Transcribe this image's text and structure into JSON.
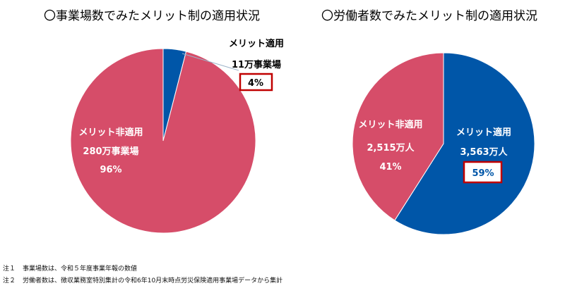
{
  "colors": {
    "applied": "#0056A8",
    "not_applied": "#D64D69",
    "highlight_box": "#C00000",
    "callout_line": "#9DB3C9"
  },
  "chart_data": [
    {
      "type": "pie",
      "title": "〇事業場数でみたメリット制の適用状況",
      "slices": [
        {
          "key": "applied",
          "value": 4,
          "label_lines": [
            "メリット適用",
            "11万事業場"
          ],
          "percent_label": "4%"
        },
        {
          "key": "not_applied",
          "value": 96,
          "label_lines": [
            "メリット非適用",
            "280万事業場"
          ],
          "percent_label": "96%"
        }
      ]
    },
    {
      "type": "pie",
      "title": "〇労働者数でみたメリット制の適用状況",
      "slices": [
        {
          "key": "applied",
          "value": 59,
          "label_lines": [
            "メリット適用",
            "3,563万人"
          ],
          "percent_label": "59%"
        },
        {
          "key": "not_applied",
          "value": 41,
          "label_lines": [
            "メリット非適用",
            "2,515万人"
          ],
          "percent_label": "41%"
        }
      ]
    }
  ],
  "notes": [
    {
      "num": "注１",
      "text": "事業場数は、令和５年度事業年報の数値"
    },
    {
      "num": "注２",
      "text": "労働者数は、徴収業務室特別集計の令和6年10月末時点労災保険適用事業場データから集計"
    }
  ]
}
